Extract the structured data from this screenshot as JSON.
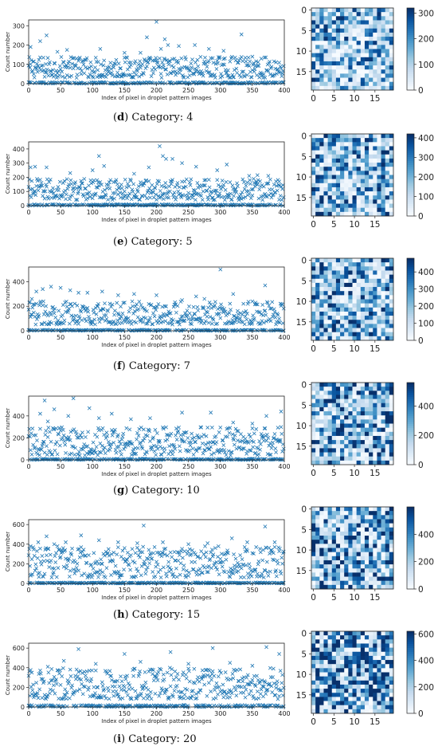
{
  "panels": [
    {
      "letter": "d",
      "caption": "Category: 4"
    },
    {
      "letter": "e",
      "caption": "Category: 5"
    },
    {
      "letter": "f",
      "caption": "Category: 7"
    },
    {
      "letter": "g",
      "caption": "Category: 10"
    },
    {
      "letter": "h",
      "caption": "Category: 15"
    },
    {
      "letter": "i",
      "caption": "Category: 20"
    }
  ],
  "chart_data": [
    {
      "type": "scatter",
      "panel": "d",
      "marker": "x",
      "color": "#1f77b4",
      "xlabel": "Index of pixel in droplet pattern images",
      "ylabel": "Count number",
      "xlim": [
        0,
        400
      ],
      "ylim": [
        0,
        330
      ],
      "xticks": [
        0,
        50,
        100,
        150,
        200,
        250,
        300,
        350,
        400
      ],
      "yticks": [
        0,
        100,
        200,
        300
      ],
      "points": [
        [
          3,
          190
        ],
        [
          8,
          115
        ],
        [
          18,
          220
        ],
        [
          28,
          250
        ],
        [
          45,
          165
        ],
        [
          60,
          175
        ],
        [
          75,
          130
        ],
        [
          112,
          180
        ],
        [
          150,
          160
        ],
        [
          160,
          110
        ],
        [
          175,
          160
        ],
        [
          185,
          240
        ],
        [
          200,
          320
        ],
        [
          207,
          180
        ],
        [
          213,
          230
        ],
        [
          218,
          200
        ],
        [
          235,
          195
        ],
        [
          260,
          200
        ],
        [
          282,
          180
        ],
        [
          305,
          170
        ],
        [
          333,
          255
        ],
        [
          350,
          140
        ]
      ],
      "band": {
        "min": 30,
        "max": 140,
        "floor": 8
      }
    },
    {
      "type": "heatmap",
      "panel": "d",
      "colormap": "Blues",
      "rows": 20,
      "cols": 20,
      "xticks": [
        0,
        5,
        10,
        15
      ],
      "yticks": [
        0,
        5,
        10,
        15
      ],
      "vmin": 0,
      "vmax": 320,
      "colorbar_ticks": [
        0,
        100,
        200,
        300
      ]
    },
    {
      "type": "scatter",
      "panel": "e",
      "marker": "x",
      "color": "#1f77b4",
      "xlabel": "Index of pixel in droplet pattern images",
      "ylabel": "Count number",
      "xlim": [
        0,
        400
      ],
      "ylim": [
        0,
        450
      ],
      "xticks": [
        0,
        50,
        100,
        150,
        200,
        250,
        300,
        350,
        400
      ],
      "yticks": [
        0,
        100,
        200,
        300,
        400
      ],
      "points": [
        [
          3,
          270
        ],
        [
          10,
          275
        ],
        [
          28,
          270
        ],
        [
          65,
          230
        ],
        [
          100,
          250
        ],
        [
          110,
          350
        ],
        [
          118,
          280
        ],
        [
          165,
          225
        ],
        [
          188,
          270
        ],
        [
          205,
          420
        ],
        [
          210,
          350
        ],
        [
          215,
          330
        ],
        [
          225,
          330
        ],
        [
          240,
          300
        ],
        [
          262,
          275
        ],
        [
          295,
          250
        ],
        [
          310,
          290
        ],
        [
          345,
          210
        ],
        [
          358,
          215
        ],
        [
          375,
          210
        ],
        [
          392,
          170
        ]
      ],
      "band": {
        "min": 40,
        "max": 190,
        "floor": 10
      }
    },
    {
      "type": "heatmap",
      "panel": "e",
      "colormap": "Blues",
      "rows": 20,
      "cols": 20,
      "xticks": [
        0,
        5,
        10,
        15
      ],
      "yticks": [
        0,
        5,
        10,
        15
      ],
      "vmin": 0,
      "vmax": 420,
      "colorbar_ticks": [
        0,
        100,
        200,
        300,
        400
      ]
    },
    {
      "type": "scatter",
      "panel": "f",
      "marker": "x",
      "color": "#1f77b4",
      "xlabel": "Index of pixel in droplet pattern images",
      "ylabel": "Count number",
      "xlim": [
        0,
        400
      ],
      "ylim": [
        0,
        520
      ],
      "xticks": [
        0,
        50,
        100,
        150,
        200,
        250,
        300,
        350,
        400
      ],
      "yticks": [
        0,
        200,
        400
      ],
      "points": [
        [
          5,
          260
        ],
        [
          12,
          320
        ],
        [
          22,
          340
        ],
        [
          35,
          360
        ],
        [
          50,
          350
        ],
        [
          65,
          330
        ],
        [
          78,
          310
        ],
        [
          92,
          310
        ],
        [
          115,
          320
        ],
        [
          140,
          290
        ],
        [
          165,
          300
        ],
        [
          200,
          290
        ],
        [
          240,
          250
        ],
        [
          262,
          280
        ],
        [
          275,
          260
        ],
        [
          300,
          500
        ],
        [
          320,
          300
        ],
        [
          350,
          240
        ],
        [
          370,
          370
        ]
      ],
      "band": {
        "min": 50,
        "max": 240,
        "floor": 8
      }
    },
    {
      "type": "heatmap",
      "panel": "f",
      "colormap": "Blues",
      "rows": 20,
      "cols": 20,
      "xticks": [
        0,
        5,
        10,
        15
      ],
      "yticks": [
        0,
        5,
        10,
        15
      ],
      "vmin": 0,
      "vmax": 480,
      "colorbar_ticks": [
        0,
        100,
        200,
        300,
        400
      ]
    },
    {
      "type": "scatter",
      "panel": "g",
      "marker": "x",
      "color": "#1f77b4",
      "xlabel": "Index of pixel in droplet pattern images",
      "ylabel": "Count number",
      "xlim": [
        0,
        400
      ],
      "ylim": [
        0,
        580
      ],
      "xticks": [
        0,
        50,
        100,
        150,
        200,
        250,
        300,
        350,
        400
      ],
      "yticks": [
        0,
        200,
        400
      ],
      "points": [
        [
          18,
          420
        ],
        [
          25,
          540
        ],
        [
          30,
          350
        ],
        [
          40,
          460
        ],
        [
          62,
          400
        ],
        [
          70,
          560
        ],
        [
          95,
          470
        ],
        [
          110,
          380
        ],
        [
          130,
          420
        ],
        [
          160,
          370
        ],
        [
          190,
          380
        ],
        [
          240,
          430
        ],
        [
          285,
          430
        ],
        [
          320,
          340
        ],
        [
          350,
          330
        ],
        [
          372,
          400
        ],
        [
          395,
          440
        ]
      ],
      "band": {
        "min": 40,
        "max": 300,
        "floor": 10
      }
    },
    {
      "type": "heatmap",
      "panel": "g",
      "colormap": "Blues",
      "rows": 20,
      "cols": 20,
      "xticks": [
        0,
        5,
        10,
        15
      ],
      "yticks": [
        0,
        5,
        10,
        15
      ],
      "vmin": 0,
      "vmax": 560,
      "colorbar_ticks": [
        0,
        200,
        400
      ]
    },
    {
      "type": "scatter",
      "panel": "h",
      "marker": "x",
      "color": "#1f77b4",
      "xlabel": "Index of pixel in droplet pattern images",
      "ylabel": "Count number",
      "xlim": [
        0,
        400
      ],
      "ylim": [
        0,
        650
      ],
      "xticks": [
        0,
        50,
        100,
        150,
        200,
        250,
        300,
        350,
        400
      ],
      "yticks": [
        0,
        200,
        400,
        600
      ],
      "points": [
        [
          3,
          380
        ],
        [
          15,
          420
        ],
        [
          28,
          480
        ],
        [
          40,
          400
        ],
        [
          58,
          420
        ],
        [
          82,
          490
        ],
        [
          110,
          440
        ],
        [
          140,
          420
        ],
        [
          170,
          410
        ],
        [
          180,
          590
        ],
        [
          210,
          420
        ],
        [
          250,
          400
        ],
        [
          280,
          410
        ],
        [
          318,
          460
        ],
        [
          342,
          420
        ],
        [
          370,
          580
        ],
        [
          385,
          420
        ]
      ],
      "band": {
        "min": 60,
        "max": 380,
        "floor": 10
      }
    },
    {
      "type": "heatmap",
      "panel": "h",
      "colormap": "Blues",
      "rows": 20,
      "cols": 20,
      "xticks": [
        0,
        5,
        10,
        15
      ],
      "yticks": [
        0,
        5,
        10,
        15
      ],
      "vmin": 0,
      "vmax": 600,
      "colorbar_ticks": [
        0,
        200,
        400
      ]
    },
    {
      "type": "scatter",
      "panel": "i",
      "marker": "x",
      "color": "#1f77b4",
      "xlabel": "Index of pixel in droplet pattern images",
      "ylabel": "Count number",
      "xlim": [
        0,
        400
      ],
      "ylim": [
        0,
        650
      ],
      "xticks": [
        0,
        50,
        100,
        150,
        200,
        250,
        300,
        350,
        400
      ],
      "yticks": [
        0,
        200,
        400,
        600
      ],
      "points": [
        [
          5,
          350
        ],
        [
          30,
          410
        ],
        [
          55,
          470
        ],
        [
          78,
          590
        ],
        [
          105,
          440
        ],
        [
          150,
          540
        ],
        [
          175,
          460
        ],
        [
          222,
          560
        ],
        [
          250,
          440
        ],
        [
          288,
          600
        ],
        [
          315,
          450
        ],
        [
          350,
          420
        ],
        [
          372,
          610
        ],
        [
          392,
          540
        ]
      ],
      "band": {
        "min": 80,
        "max": 400,
        "floor": 20
      }
    },
    {
      "type": "heatmap",
      "panel": "i",
      "colormap": "Blues",
      "rows": 20,
      "cols": 20,
      "xticks": [
        0,
        5,
        10,
        15
      ],
      "yticks": [
        0,
        5,
        10,
        15
      ],
      "vmin": 0,
      "vmax": 620,
      "colorbar_ticks": [
        0,
        200,
        400,
        600
      ]
    }
  ]
}
